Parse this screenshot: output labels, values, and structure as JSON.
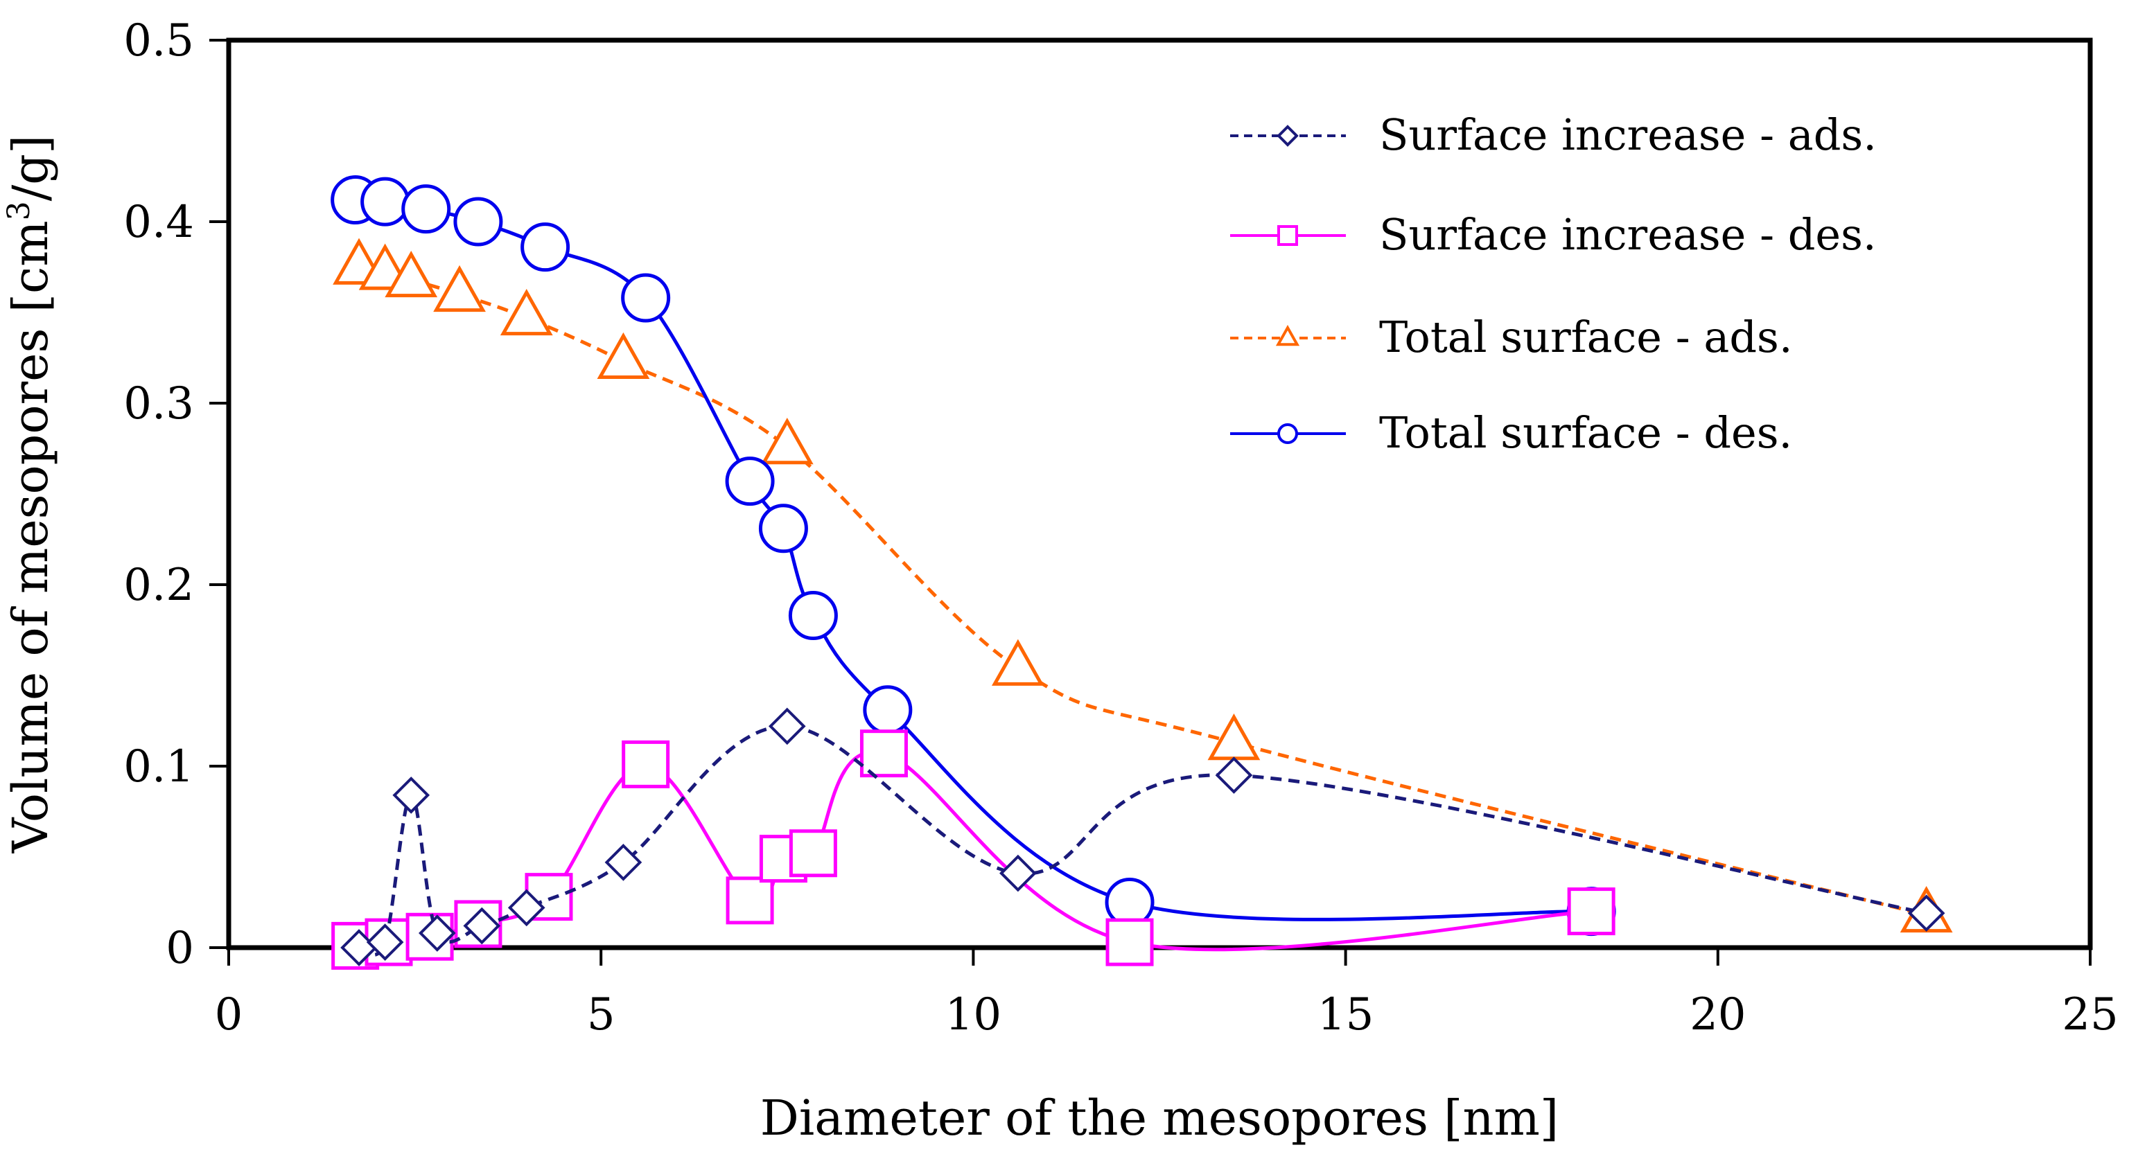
{
  "chart_data": {
    "type": "line",
    "title": "",
    "xlabel": "Diameter of the mesopores [nm]",
    "ylabel_main": "Volume of mesopores [cm",
    "ylabel_sup": "3",
    "ylabel_end": "/g]",
    "xlim": [
      0,
      25
    ],
    "ylim": [
      0,
      0.5
    ],
    "xticks": [
      0,
      5,
      10,
      15,
      20,
      25
    ],
    "xtick_labels": [
      "0",
      "5",
      "10",
      "15",
      "20",
      "25"
    ],
    "yticks": [
      0,
      0.1,
      0.2,
      0.3,
      0.4,
      0.5
    ],
    "ytick_labels": [
      "0",
      "0.1",
      "0.2",
      "0.3",
      "0.4",
      "0.5"
    ],
    "grid": false,
    "legend_position": "top-right",
    "series": [
      {
        "name": "Surface increase - ads.",
        "color": "#1a1a7a",
        "line_style": "dashed",
        "marker": "diamond",
        "x": [
          1.75,
          2.1,
          2.45,
          2.8,
          3.4,
          4.0,
          5.3,
          7.5,
          10.6,
          13.5,
          22.8
        ],
        "y": [
          0.0,
          0.003,
          0.084,
          0.008,
          0.012,
          0.022,
          0.047,
          0.122,
          0.041,
          0.095,
          0.019
        ]
      },
      {
        "name": "Surface increase - des.",
        "color": "#ff00ff",
        "line_style": "solid",
        "marker": "square",
        "x": [
          1.7,
          2.15,
          2.7,
          3.35,
          4.3,
          5.6,
          7.0,
          7.45,
          7.85,
          8.8,
          12.1,
          18.3
        ],
        "y": [
          0.001,
          0.003,
          0.006,
          0.013,
          0.028,
          0.101,
          0.026,
          0.049,
          0.052,
          0.107,
          0.003,
          0.02
        ]
      },
      {
        "name": "Total surface - ads.",
        "color": "#ff6600",
        "line_style": "dashed",
        "marker": "triangle",
        "x": [
          1.75,
          2.1,
          2.45,
          3.1,
          4.0,
          5.3,
          7.5,
          10.6,
          13.5,
          22.8
        ],
        "y": [
          0.375,
          0.372,
          0.368,
          0.36,
          0.347,
          0.323,
          0.276,
          0.154,
          0.113,
          0.018
        ]
      },
      {
        "name": "Total surface - des.",
        "color": "#0000ee",
        "line_style": "solid",
        "marker": "circle",
        "x": [
          1.7,
          2.1,
          2.65,
          3.35,
          4.25,
          5.6,
          7.0,
          7.45,
          7.85,
          8.85,
          12.1,
          18.3
        ],
        "y": [
          0.412,
          0.411,
          0.407,
          0.4,
          0.386,
          0.358,
          0.257,
          0.231,
          0.183,
          0.131,
          0.025,
          0.02
        ]
      }
    ]
  }
}
